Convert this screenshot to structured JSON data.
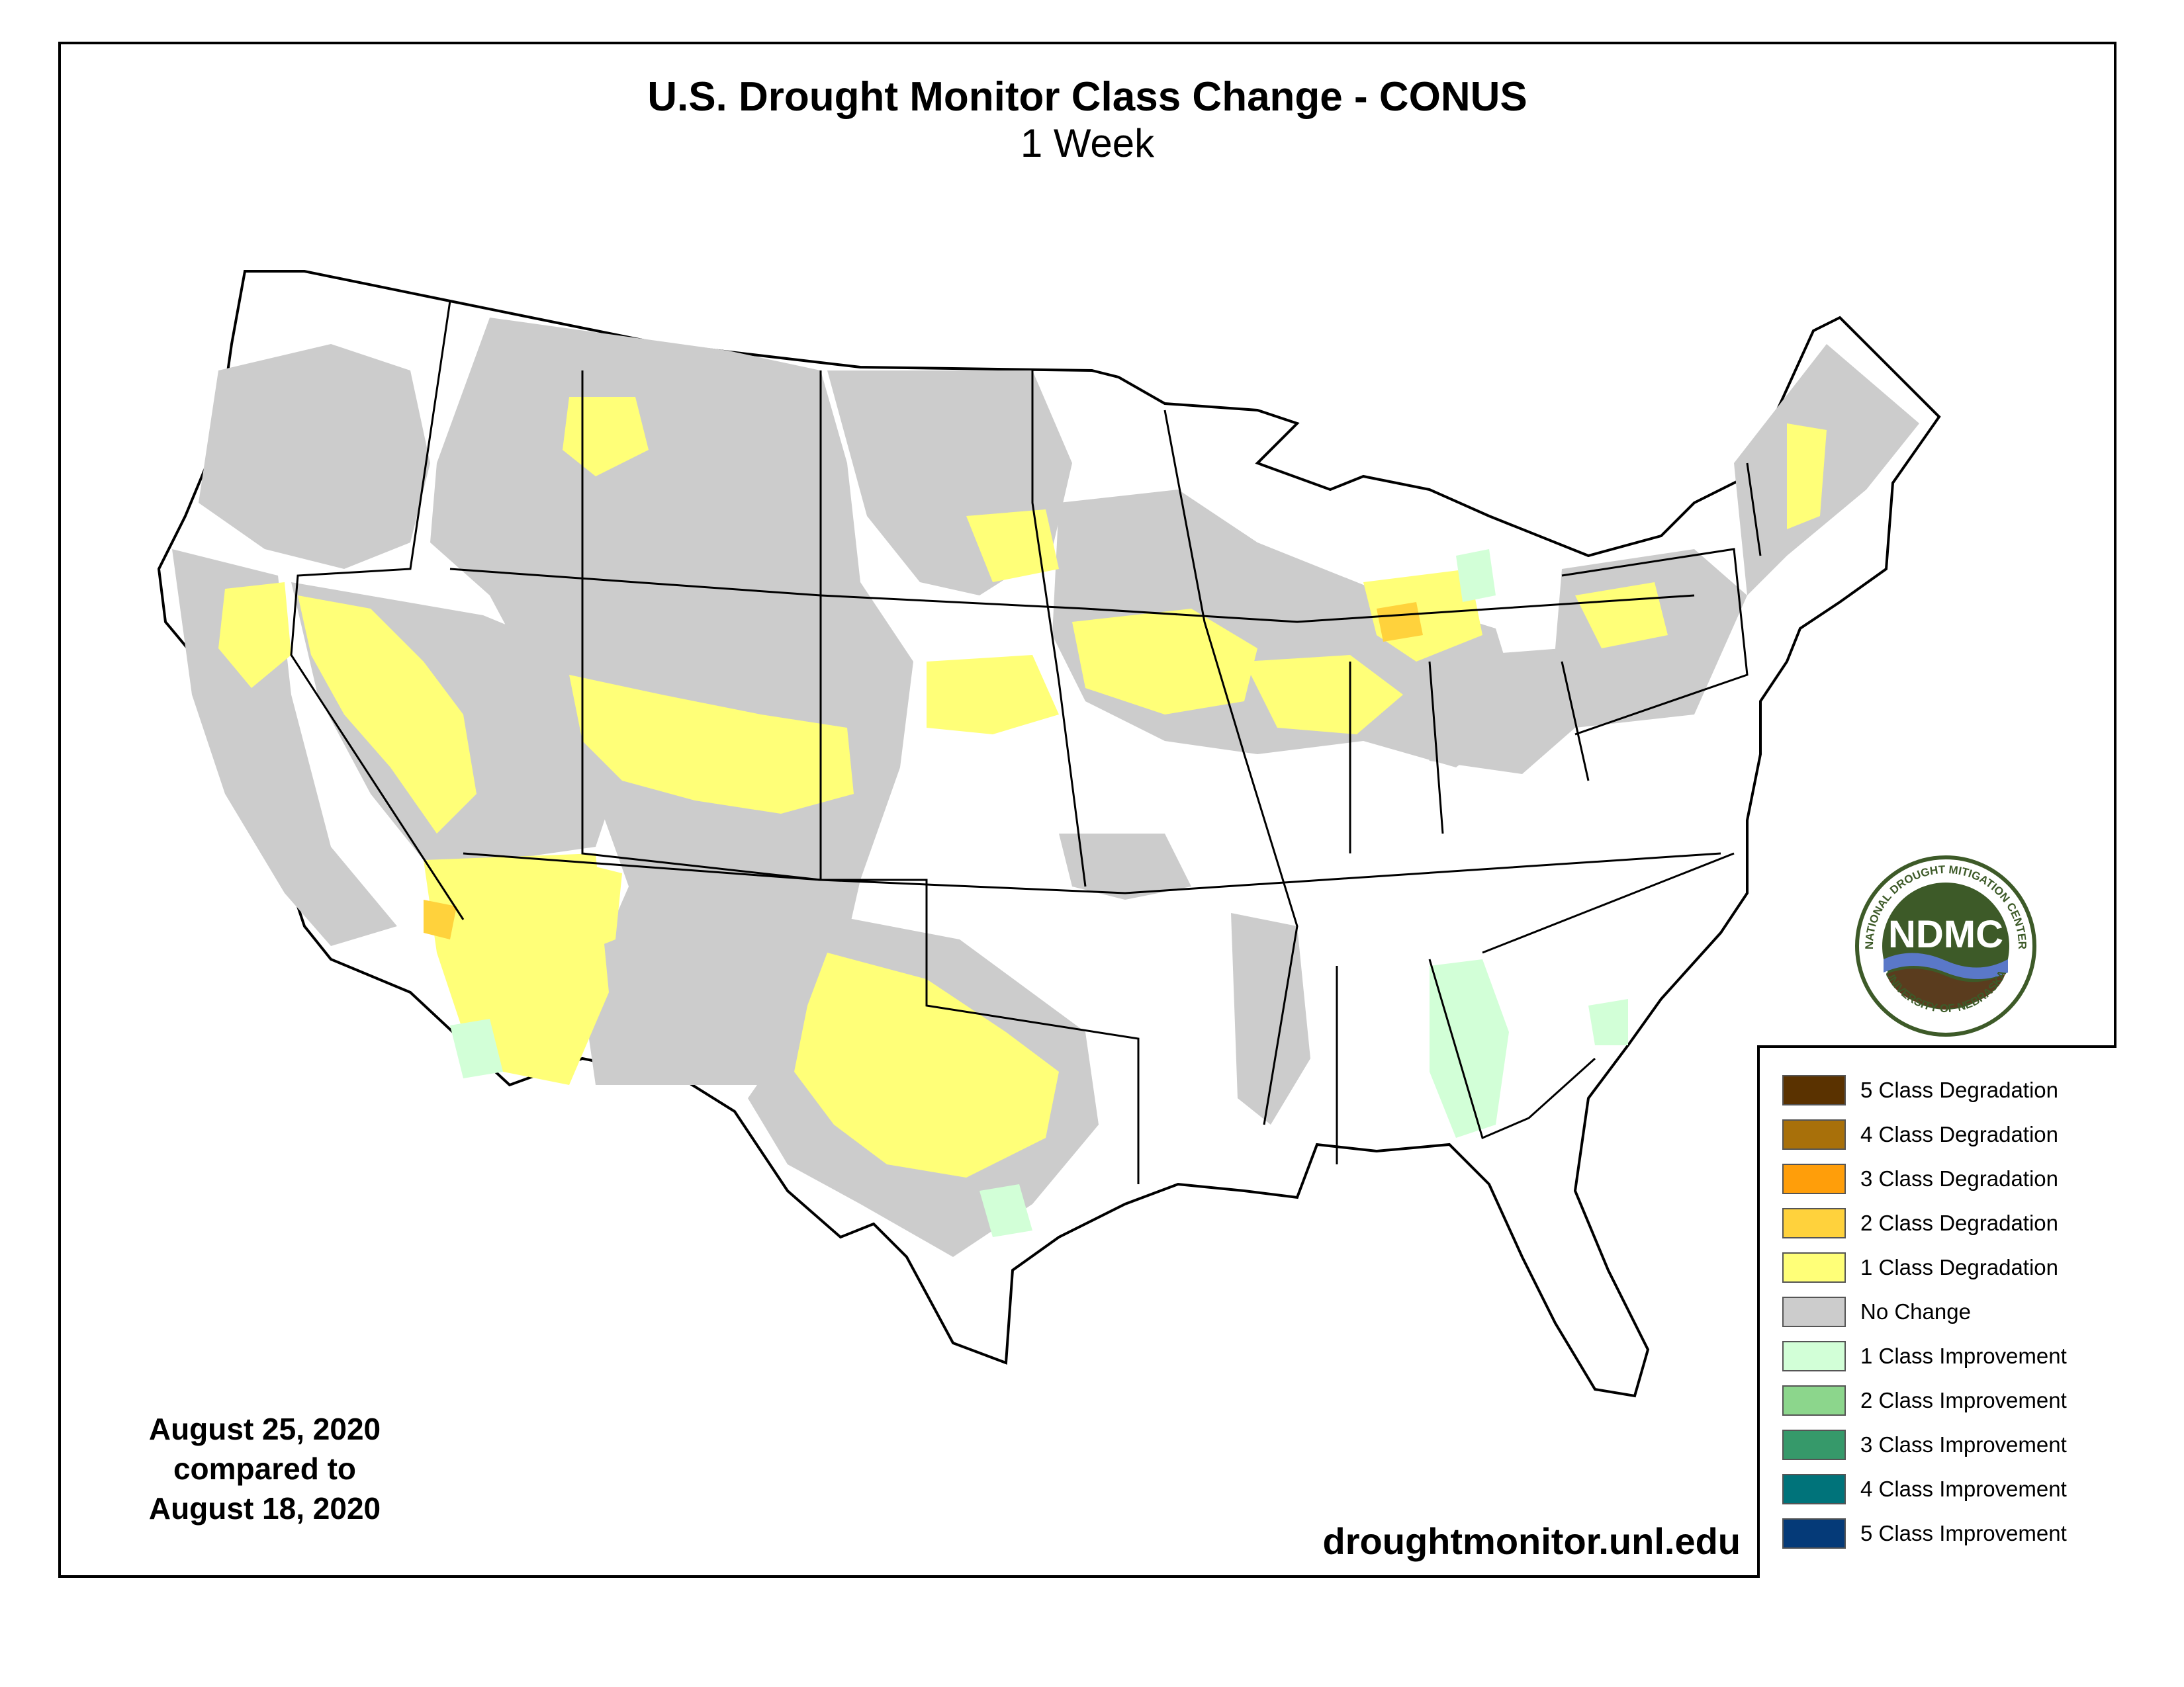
{
  "title": "U.S. Drought Monitor Class Change - CONUS",
  "subtitle": "1 Week",
  "dates": {
    "line1": "August 25, 2020",
    "line2": "compared to",
    "line3": "August 18, 2020"
  },
  "url": "droughtmonitor.unl.edu",
  "logo": {
    "abbrev": "NDMC",
    "ring_top": "NATIONAL DROUGHT MITIGATION CENTER",
    "ring_bottom": "UNIVERSITY OF NEBRASKA"
  },
  "legend": [
    {
      "label": "5 Class Degradation",
      "color": "#5a3200"
    },
    {
      "label": "4 Class Degradation",
      "color": "#a8700a"
    },
    {
      "label": "3 Class Degradation",
      "color": "#ff9e0a"
    },
    {
      "label": "2 Class Degradation",
      "color": "#ffd23c"
    },
    {
      "label": "1 Class Degradation",
      "color": "#ffff78"
    },
    {
      "label": "No Change",
      "color": "#cccccc"
    },
    {
      "label": "1 Class Improvement",
      "color": "#d2ffd7"
    },
    {
      "label": "2 Class Improvement",
      "color": "#8cd68c"
    },
    {
      "label": "3 Class Improvement",
      "color": "#36996a"
    },
    {
      "label": "4 Class Improvement",
      "color": "#00737a"
    },
    {
      "label": "5 Class Improvement",
      "color": "#053a78"
    }
  ],
  "colors": {
    "no_change": "#cccccc",
    "degradation_1": "#ffff78",
    "degradation_2": "#ffd23c",
    "improvement_1": "#d2ffd7",
    "improvement_2": "#8cd68c",
    "logo_green": "#3d5a28",
    "logo_brown": "#5a3c1e",
    "logo_blue": "#5a78c8"
  }
}
